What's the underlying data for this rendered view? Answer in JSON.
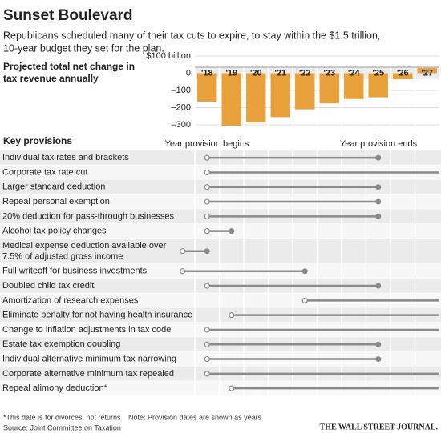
{
  "header": {
    "title": "Sunset Boulevard",
    "subtitle": [
      "Republicans scheduled many of their tax cuts to expire, to stay within the $1.5 trillion,",
      "10-year budget they set for the plan."
    ]
  },
  "chart_data": [
    {
      "type": "bar",
      "title": [
        "Projected total net change in",
        "tax revenue annually"
      ],
      "x": [
        2018,
        2019,
        2020,
        2021,
        2022,
        2023,
        2024,
        2025,
        2026,
        2027
      ],
      "values": [
        -165,
        -305,
        -285,
        -255,
        -210,
        -175,
        -150,
        -140,
        -35,
        30
      ],
      "color": "#e8a03a",
      "xlim": [
        2017.5,
        2027.5
      ],
      "xticks": [
        {
          "value": 2018,
          "label": "'18"
        },
        {
          "value": 2019,
          "label": "'19"
        },
        {
          "value": 2020,
          "label": "'20"
        },
        {
          "value": 2021,
          "label": "'21"
        },
        {
          "value": 2022,
          "label": "'22"
        },
        {
          "value": 2023,
          "label": "'23"
        },
        {
          "value": 2024,
          "label": "'24"
        },
        {
          "value": 2025,
          "label": "'25"
        },
        {
          "value": 2026,
          "label": "'26"
        },
        {
          "value": 2027,
          "label": "'27"
        }
      ],
      "ylim": [
        -300,
        100
      ],
      "yticks": [
        {
          "value": 100,
          "label": "$100 billion"
        },
        0,
        {
          "value": -100,
          "label": "–100"
        },
        {
          "value": -200,
          "label": "–200"
        },
        {
          "value": -300,
          "label": "–300"
        }
      ],
      "grid": true
    },
    {
      "type": "timeline",
      "title": "Key provisions",
      "start_label": "Year provision begins",
      "end_label": "Year provision ends",
      "xlim": [
        2017.5,
        2027.5
      ],
      "color": "#8a8a8a",
      "rows": [
        {
          "label": [
            "Individual tax rates and brackets"
          ],
          "start": 2018,
          "end": 2025
        },
        {
          "label": [
            "Corporate tax rate cut"
          ],
          "start": 2018,
          "end": null
        },
        {
          "label": [
            "Larger standard deduction"
          ],
          "start": 2018,
          "end": 2025
        },
        {
          "label": [
            "Repeal personal exemption"
          ],
          "start": 2018,
          "end": 2025
        },
        {
          "label": [
            "20% deduction for pass-through businesses"
          ],
          "start": 2018,
          "end": 2025
        },
        {
          "label": [
            "Alcohol tax policy changes"
          ],
          "start": 2018,
          "end": 2019
        },
        {
          "label": [
            "Medical expense deduction available over",
            "7.5% of adjusted gross income"
          ],
          "start": 2017,
          "end": 2018
        },
        {
          "label": [
            "Full writeoff for business investments"
          ],
          "start": 2017,
          "end": 2022
        },
        {
          "label": [
            "Doubled child tax credit"
          ],
          "start": 2018,
          "end": 2025
        },
        {
          "label": [
            "Amortization of research expenses"
          ],
          "start": 2022,
          "end": null
        },
        {
          "label": [
            "Eliminate penalty for not having health insurance"
          ],
          "start": 2019,
          "end": null
        },
        {
          "label": [
            "Change to inflation adjustments in tax code"
          ],
          "start": 2018,
          "end": null
        },
        {
          "label": [
            "Estate tax exemption doubling"
          ],
          "start": 2018,
          "end": 2025
        },
        {
          "label": [
            "Individual alternative minimum tax narrowing"
          ],
          "start": 2018,
          "end": 2025
        },
        {
          "label": [
            "Corporate alternative minimum tax repealed"
          ],
          "start": 2018,
          "end": null
        },
        {
          "label": [
            "Repeal alimony deduction*"
          ],
          "start": 2019,
          "end": null
        }
      ]
    }
  ],
  "footer": {
    "footnote": "*This date is for divorces, not returns",
    "note": "Note: Provision dates are shown as years",
    "source": "Source: Joint Committee on Taxation",
    "credit": "THE WALL STREET JOURNAL."
  }
}
